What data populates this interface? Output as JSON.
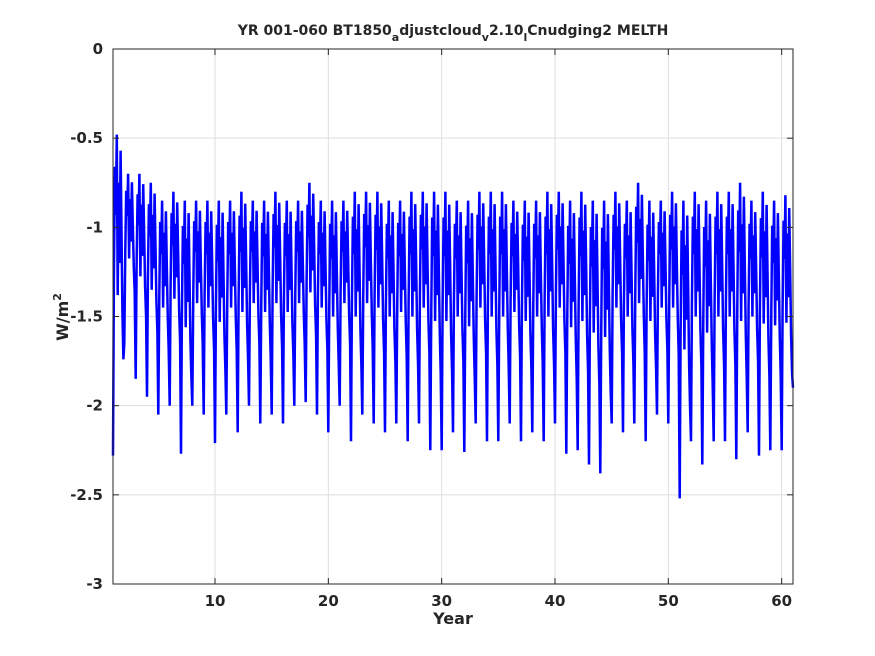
{
  "chart_data": {
    "type": "line",
    "title": "YR 001-060 BT1850",
    "title_parts": [
      "a",
      "djustcloud",
      "v",
      "2.10",
      "l",
      "Cnudging2 MELTH"
    ],
    "xlabel": "Year",
    "ylabel": "W/m",
    "ylabel_sup": "2",
    "xlim": [
      1,
      61
    ],
    "ylim": [
      -3,
      0
    ],
    "xticks": [
      "10",
      "20",
      "30",
      "40",
      "50",
      "60"
    ],
    "yticks": [
      "0",
      "-0.5",
      "-1",
      "-1.5",
      "-2",
      "-2.5",
      "-3"
    ],
    "grid": true,
    "series": [
      {
        "color": "#0000ff",
        "months_per_year": 12,
        "annual_minimum": [
          -2.28,
          -1.65,
          -1.85,
          -1.95,
          -2.05,
          -2.0,
          -2.27,
          -2.0,
          -2.05,
          -2.21,
          -2.05,
          -2.15,
          -2.0,
          -2.1,
          -2.05,
          -2.1,
          -2.0,
          -1.98,
          -2.05,
          -2.15,
          -2.0,
          -2.2,
          -2.05,
          -2.1,
          -2.15,
          -2.1,
          -2.2,
          -2.1,
          -2.25,
          -2.25,
          -2.15,
          -2.26,
          -2.1,
          -2.2,
          -2.2,
          -2.1,
          -2.2,
          -2.15,
          -2.2,
          -2.1,
          -2.27,
          -2.25,
          -2.33,
          -2.38,
          -2.1,
          -2.15,
          -2.1,
          -2.2,
          -2.05,
          -2.1,
          -2.52,
          -2.2,
          -2.33,
          -2.2,
          -2.2,
          -2.3,
          -2.15,
          -2.28,
          -2.25,
          -2.25
        ],
        "annual_maximum": [
          -0.48,
          -0.7,
          -0.7,
          -0.75,
          -0.85,
          -0.8,
          -0.85,
          -0.85,
          -0.85,
          -0.85,
          -0.85,
          -0.8,
          -0.85,
          -0.85,
          -0.8,
          -0.85,
          -0.85,
          -0.75,
          -0.85,
          -0.85,
          -0.85,
          -0.8,
          -0.8,
          -0.8,
          -0.85,
          -0.85,
          -0.8,
          -0.8,
          -0.8,
          -0.8,
          -0.85,
          -0.85,
          -0.8,
          -0.8,
          -0.8,
          -0.85,
          -0.85,
          -0.85,
          -0.8,
          -0.8,
          -0.85,
          -0.8,
          -0.85,
          -0.85,
          -0.8,
          -0.85,
          -0.75,
          -0.85,
          -0.85,
          -0.8,
          -0.85,
          -0.8,
          -0.85,
          -0.8,
          -0.8,
          -0.75,
          -0.85,
          -0.8,
          -0.85,
          -0.82
        ]
      }
    ]
  }
}
